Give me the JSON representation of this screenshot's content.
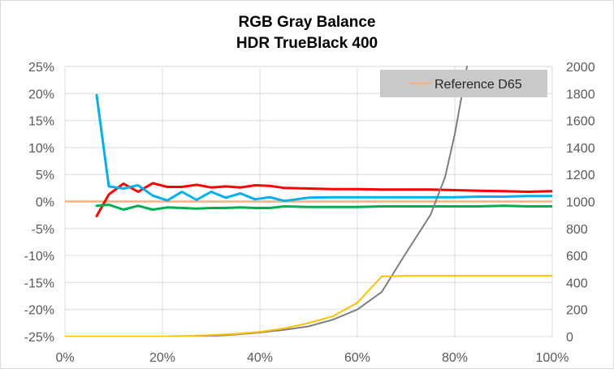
{
  "chart_data": {
    "type": "line",
    "title": [
      "RGB Gray Balance",
      "HDR TrueBlack 400"
    ],
    "x_axis": {
      "range": [
        0,
        100
      ],
      "ticks": [
        0,
        20,
        40,
        60,
        80,
        100
      ],
      "tick_labels": [
        "0%",
        "20%",
        "40%",
        "60%",
        "80%",
        "100%"
      ]
    },
    "y_axis_left": {
      "range": [
        -25,
        25
      ],
      "ticks": [
        -25,
        -20,
        -15,
        -10,
        -5,
        0,
        5,
        10,
        15,
        20,
        25
      ],
      "tick_labels": [
        "-25%",
        "-20%",
        "-15%",
        "-10%",
        "-5%",
        "0%",
        "5%",
        "10%",
        "15%",
        "20%",
        "25%"
      ]
    },
    "y_axis_right": {
      "range": [
        0,
        2000
      ],
      "ticks": [
        0,
        200,
        400,
        600,
        800,
        1000,
        1200,
        1400,
        1600,
        1800,
        2000
      ],
      "tick_labels": [
        "0",
        "200",
        "400",
        "600",
        "800",
        "1000",
        "1200",
        "1400",
        "1600",
        "1800",
        "2000"
      ]
    },
    "grid": true,
    "legend": {
      "placement": "top-right",
      "entries": [
        {
          "label": "Reference D65",
          "color": "#f4b183"
        }
      ]
    },
    "series": [
      {
        "color": "#f4b183",
        "axis": "left",
        "width": 2.5,
        "x": [
          0,
          100
        ],
        "y": [
          0,
          0
        ]
      },
      {
        "color": "#ff0000",
        "axis": "left",
        "width": 3,
        "x": [
          6.5,
          9,
          12,
          15,
          18,
          21,
          24,
          27,
          30,
          33,
          36,
          39,
          42,
          45,
          50,
          55,
          60,
          65,
          70,
          75,
          80,
          85,
          90,
          95,
          100
        ],
        "y": [
          -2.7,
          1.3,
          3.3,
          1.8,
          3.4,
          2.7,
          2.7,
          3.1,
          2.6,
          2.8,
          2.6,
          3.0,
          2.9,
          2.5,
          2.4,
          2.3,
          2.3,
          2.2,
          2.2,
          2.2,
          2.1,
          2.0,
          1.9,
          1.8,
          1.9
        ]
      },
      {
        "color": "#00b050",
        "axis": "left",
        "width": 3,
        "x": [
          6.5,
          9,
          12,
          15,
          18,
          21,
          24,
          27,
          30,
          33,
          36,
          39,
          42,
          45,
          50,
          55,
          60,
          65,
          70,
          75,
          80,
          85,
          90,
          95,
          100
        ],
        "y": [
          -0.8,
          -0.6,
          -1.5,
          -0.8,
          -1.5,
          -1.1,
          -1.2,
          -1.3,
          -1.2,
          -1.2,
          -1.1,
          -1.2,
          -1.2,
          -0.9,
          -1.0,
          -1.0,
          -1.0,
          -0.9,
          -0.9,
          -0.9,
          -0.9,
          -0.9,
          -0.8,
          -0.9,
          -0.9
        ]
      },
      {
        "color": "#00b0f0",
        "axis": "left",
        "width": 3,
        "x": [
          6.5,
          9,
          12,
          15,
          18,
          21,
          24,
          27,
          30,
          33,
          36,
          39,
          42,
          45,
          50,
          55,
          60,
          65,
          70,
          75,
          80,
          85,
          90,
          95,
          100
        ],
        "y": [
          19.7,
          2.8,
          2.4,
          3.0,
          1.1,
          0.2,
          1.8,
          0.3,
          1.8,
          0.7,
          1.5,
          0.4,
          0.8,
          0.1,
          0.7,
          0.8,
          0.8,
          0.8,
          0.8,
          0.8,
          0.8,
          0.9,
          0.9,
          1.0,
          1.0
        ]
      },
      {
        "color": "#7f7f7f",
        "axis": "right",
        "width": 2,
        "x": [
          0,
          25,
          30,
          35,
          40,
          45,
          50,
          55,
          60,
          65,
          70,
          75,
          78,
          80,
          82.5
        ],
        "y": [
          0,
          0,
          5,
          15,
          30,
          50,
          75,
          125,
          200,
          330,
          620,
          900,
          1180,
          1500,
          2000
        ]
      },
      {
        "color": "#ffc000",
        "axis": "right",
        "width": 2,
        "x": [
          0,
          20,
          25,
          30,
          35,
          40,
          45,
          50,
          55,
          60,
          65,
          70,
          75,
          80,
          85,
          90,
          95,
          100
        ],
        "y": [
          0,
          0,
          5,
          10,
          20,
          35,
          60,
          100,
          150,
          250,
          445,
          450,
          450,
          450,
          450,
          450,
          450,
          450
        ]
      }
    ]
  }
}
